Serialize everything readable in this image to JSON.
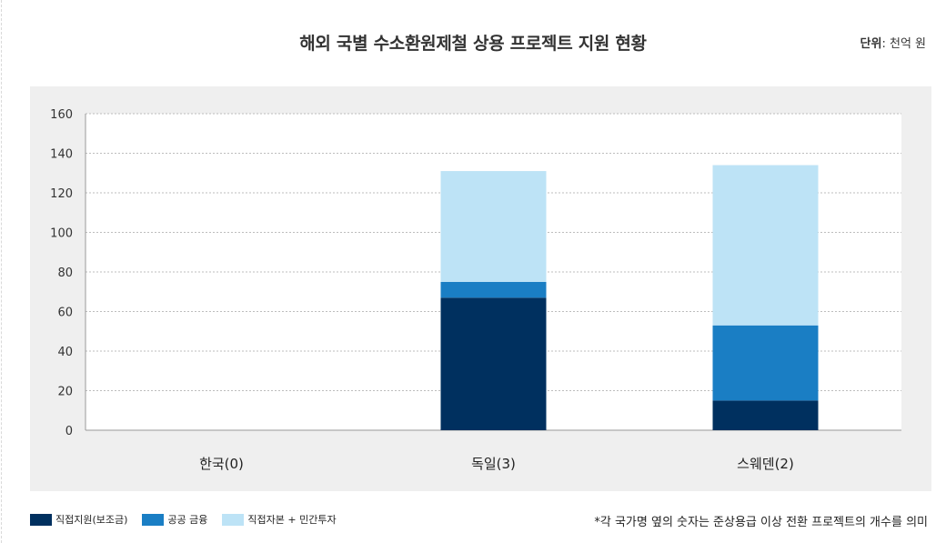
{
  "title": "해외 국별 수소환원제철 상용 프로젝트 지원 현황",
  "unit": {
    "label": "단위",
    "value": ": 천억 원"
  },
  "note": "*각 국가명 옆의 숫자는 준상용급 이상 전환 프로젝트의 개수를 의미",
  "colors": {
    "panel": "#efefef",
    "plot": "#ffffff",
    "grid": "#bdbdbd"
  },
  "chart_data": {
    "type": "bar",
    "stacked": true,
    "categories": [
      "한국(0)",
      "독일(3)",
      "스웨덴(2)"
    ],
    "series": [
      {
        "name": "직접지원(보조금)",
        "color": "#00305f",
        "values": [
          0,
          67,
          15
        ]
      },
      {
        "name": "공공 금융",
        "color": "#1a7ec4",
        "values": [
          0,
          8,
          38
        ]
      },
      {
        "name": "직접자본 + 민간투자",
        "color": "#bde3f6",
        "values": [
          0,
          56,
          81
        ]
      }
    ],
    "ylim": [
      0,
      160
    ],
    "yticks": [
      0,
      20,
      40,
      60,
      80,
      100,
      120,
      140,
      160
    ],
    "grid": true,
    "legend_position": "bottom-left"
  }
}
